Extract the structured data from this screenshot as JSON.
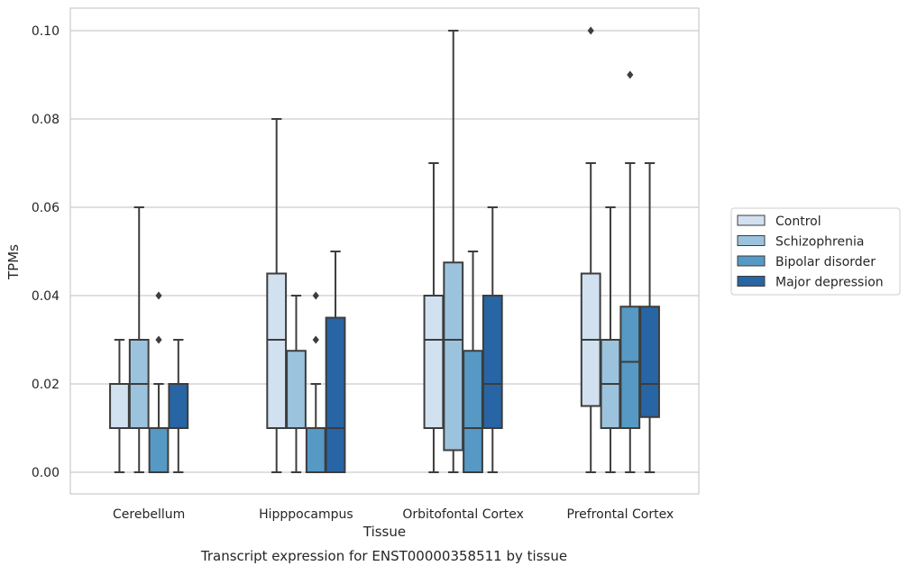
{
  "chart_data": {
    "type": "boxplot",
    "xlabel": "Tissue",
    "ylabel": "TPMs",
    "caption": "Transcript expression for ENST00000358511 by tissue",
    "ylim": [
      -0.005,
      0.105
    ],
    "y_ticks": [
      "0.00",
      "0.02",
      "0.04",
      "0.06",
      "0.08",
      "0.10"
    ],
    "y_tick_values": [
      0,
      0.02,
      0.04,
      0.06,
      0.08,
      0.1
    ],
    "grid": "horizontal",
    "legend_placement": "right",
    "categories": [
      "Cerebellum",
      "Hipppocampus",
      "Orbitofontal Cortex",
      "Prefrontal Cortex"
    ],
    "series": [
      {
        "name": "Control",
        "color": "#d1e1f0",
        "boxes": [
          {
            "min": 0.0,
            "q1": 0.01,
            "median": 0.01,
            "q3": 0.02,
            "max": 0.03,
            "outliers": []
          },
          {
            "min": 0.0,
            "q1": 0.01,
            "median": 0.03,
            "q3": 0.045,
            "max": 0.08,
            "outliers": []
          },
          {
            "min": 0.0,
            "q1": 0.01,
            "median": 0.03,
            "q3": 0.04,
            "max": 0.07,
            "outliers": []
          },
          {
            "min": 0.0,
            "q1": 0.015,
            "median": 0.03,
            "q3": 0.045,
            "max": 0.07,
            "outliers": [
              0.1
            ]
          }
        ]
      },
      {
        "name": "Schizophrenia",
        "color": "#9cc3de",
        "boxes": [
          {
            "min": 0.0,
            "q1": 0.01,
            "median": 0.02,
            "q3": 0.03,
            "max": 0.06,
            "outliers": []
          },
          {
            "min": 0.0,
            "q1": 0.01,
            "median": 0.01,
            "q3": 0.0275,
            "max": 0.04,
            "outliers": []
          },
          {
            "min": 0.0,
            "q1": 0.005,
            "median": 0.03,
            "q3": 0.0475,
            "max": 0.1,
            "outliers": []
          },
          {
            "min": 0.0,
            "q1": 0.01,
            "median": 0.02,
            "q3": 0.03,
            "max": 0.06,
            "outliers": []
          }
        ]
      },
      {
        "name": "Bipolar disorder",
        "color": "#5599c4",
        "boxes": [
          {
            "min": 0.0,
            "q1": 0.0,
            "median": 0.0,
            "q3": 0.01,
            "max": 0.02,
            "outliers": [
              0.03,
              0.04
            ]
          },
          {
            "min": 0.0,
            "q1": 0.0,
            "median": 0.0,
            "q3": 0.01,
            "max": 0.02,
            "outliers": [
              0.03,
              0.04
            ]
          },
          {
            "min": 0.0,
            "q1": 0.0,
            "median": 0.01,
            "q3": 0.0275,
            "max": 0.05,
            "outliers": []
          },
          {
            "min": 0.0,
            "q1": 0.01,
            "median": 0.025,
            "q3": 0.0375,
            "max": 0.07,
            "outliers": [
              0.09
            ]
          }
        ]
      },
      {
        "name": "Major depression",
        "color": "#2765a4",
        "boxes": [
          {
            "min": 0.0,
            "q1": 0.01,
            "median": 0.01,
            "q3": 0.02,
            "max": 0.03,
            "outliers": []
          },
          {
            "min": 0.0,
            "q1": 0.0,
            "median": 0.01,
            "q3": 0.035,
            "max": 0.05,
            "outliers": []
          },
          {
            "min": 0.0,
            "q1": 0.01,
            "median": 0.02,
            "q3": 0.04,
            "max": 0.06,
            "outliers": []
          },
          {
            "min": 0.0,
            "q1": 0.0125,
            "median": 0.02,
            "q3": 0.0375,
            "max": 0.07,
            "outliers": []
          }
        ]
      }
    ]
  }
}
